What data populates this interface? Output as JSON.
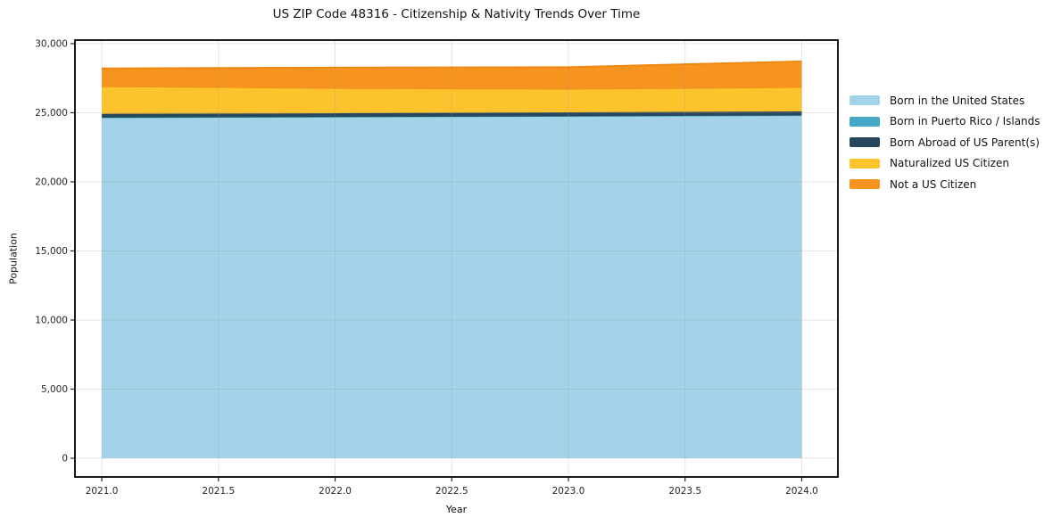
{
  "chart_data": {
    "type": "area",
    "stacked": true,
    "title": "US ZIP Code 48316 - Citizenship & Nativity Trends Over Time",
    "xlabel": "Year",
    "ylabel": "Population",
    "x": [
      2021,
      2022,
      2023,
      2024
    ],
    "series": [
      {
        "name": "Born in the United States",
        "color": "#A3D3E9",
        "edge": "#A3D3E9",
        "values": [
          24640,
          24690,
          24740,
          24800
        ]
      },
      {
        "name": "Born in Puerto Rico / Islands",
        "color": "#45A7C6",
        "edge": "#45A7C6",
        "values": [
          0,
          0,
          0,
          0
        ]
      },
      {
        "name": "Born Abroad of US Parent(s)",
        "color": "#27485C",
        "edge": "#27485C",
        "values": [
          280,
          270,
          290,
          300
        ]
      },
      {
        "name": "Naturalized US Citizen",
        "color": "#FDC32D",
        "edge": "#EE9015",
        "values": [
          2000,
          1830,
          1700,
          1760
        ]
      },
      {
        "name": "Not a US Citizen",
        "color": "#F79420",
        "edge": "#EE860F",
        "values": [
          1290,
          1480,
          1570,
          1860
        ]
      }
    ],
    "xlim": [
      2020.885,
      2024.155
    ],
    "ylim": [
      -1355,
      30255
    ],
    "x_ticks": [
      {
        "value": 2021.0,
        "label": "2021.0"
      },
      {
        "value": 2021.5,
        "label": "2021.5"
      },
      {
        "value": 2022.0,
        "label": "2022.0"
      },
      {
        "value": 2022.5,
        "label": "2022.5"
      },
      {
        "value": 2023.0,
        "label": "2023.0"
      },
      {
        "value": 2023.5,
        "label": "2023.5"
      },
      {
        "value": 2024.0,
        "label": "2024.0"
      }
    ],
    "y_ticks": [
      {
        "value": 0,
        "label": "0"
      },
      {
        "value": 5000,
        "label": "5,000"
      },
      {
        "value": 10000,
        "label": "10,000"
      },
      {
        "value": 15000,
        "label": "15,000"
      },
      {
        "value": 20000,
        "label": "20,000"
      },
      {
        "value": 25000,
        "label": "25,000"
      },
      {
        "value": 30000,
        "label": "30,000"
      }
    ],
    "grid": true,
    "legend_position": "right",
    "colors": {
      "background": "#ffffff",
      "plot_border": "#000000",
      "axis_text": "#262626",
      "grid_line": "rgba(150,150,150,0.25)"
    }
  }
}
